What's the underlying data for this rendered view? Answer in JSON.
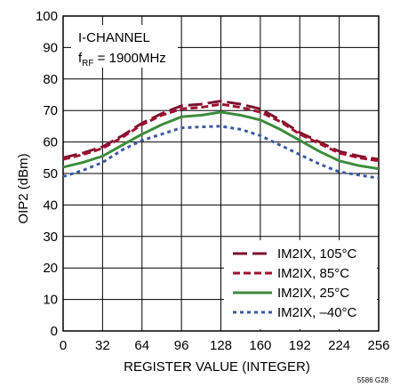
{
  "chart_data": {
    "type": "line",
    "xlabel": "REGISTER VALUE (INTEGER)",
    "ylabel": "OIP2 (dBm)",
    "xlim": [
      0,
      256
    ],
    "ylim": [
      0,
      100
    ],
    "x_ticks": [
      0,
      32,
      64,
      96,
      128,
      160,
      192,
      224,
      256
    ],
    "y_ticks": [
      0,
      10,
      20,
      30,
      40,
      50,
      60,
      70,
      80,
      90,
      100
    ],
    "grid": true,
    "legend_position": "bottom-right",
    "annotation": {
      "line1": "I-CHANNEL",
      "line2_main": "f",
      "line2_sub": "RF",
      "line2_rest": " = 1900MHz"
    },
    "figure_id": "5586 G28",
    "series": [
      {
        "name": "IM2IX, 105°C",
        "color": "#7b1330",
        "style": "long-dash",
        "x": [
          0,
          16,
          32,
          48,
          64,
          80,
          96,
          112,
          128,
          144,
          160,
          176,
          192,
          208,
          224,
          240,
          256
        ],
        "y": [
          55.0,
          56.5,
          58.5,
          62.0,
          66.0,
          69.0,
          71.5,
          72.0,
          73.0,
          72.0,
          70.5,
          67.0,
          63.0,
          60.0,
          57.0,
          55.5,
          54.5
        ]
      },
      {
        "name": "IM2IX, 85°C",
        "color": "#a0102e",
        "style": "short-dash",
        "x": [
          0,
          16,
          32,
          48,
          64,
          80,
          96,
          112,
          128,
          144,
          160,
          176,
          192,
          208,
          224,
          240,
          256
        ],
        "y": [
          54.5,
          56.0,
          58.0,
          61.5,
          65.5,
          68.5,
          70.5,
          71.0,
          72.0,
          71.0,
          69.5,
          66.5,
          62.5,
          59.5,
          56.5,
          55.0,
          54.0
        ]
      },
      {
        "name": "IM2IX, 25°C",
        "color": "#3c8c3c",
        "style": "solid",
        "x": [
          0,
          16,
          32,
          48,
          64,
          80,
          96,
          112,
          128,
          144,
          160,
          176,
          192,
          208,
          224,
          240,
          256
        ],
        "y": [
          52.0,
          53.5,
          55.5,
          59.0,
          62.5,
          65.5,
          68.0,
          68.5,
          69.5,
          68.5,
          67.0,
          64.0,
          60.5,
          57.0,
          54.0,
          52.5,
          51.5
        ]
      },
      {
        "name": "IM2IX, –40°C",
        "color": "#3c5aa0",
        "style": "dotted",
        "x": [
          0,
          16,
          32,
          48,
          64,
          80,
          96,
          112,
          128,
          144,
          160,
          176,
          192,
          208,
          224,
          240,
          256
        ],
        "y": [
          49.0,
          51.0,
          53.5,
          57.5,
          60.5,
          62.5,
          64.5,
          64.8,
          65.0,
          64.0,
          62.0,
          59.0,
          56.0,
          53.0,
          50.5,
          49.5,
          48.5
        ]
      }
    ]
  }
}
